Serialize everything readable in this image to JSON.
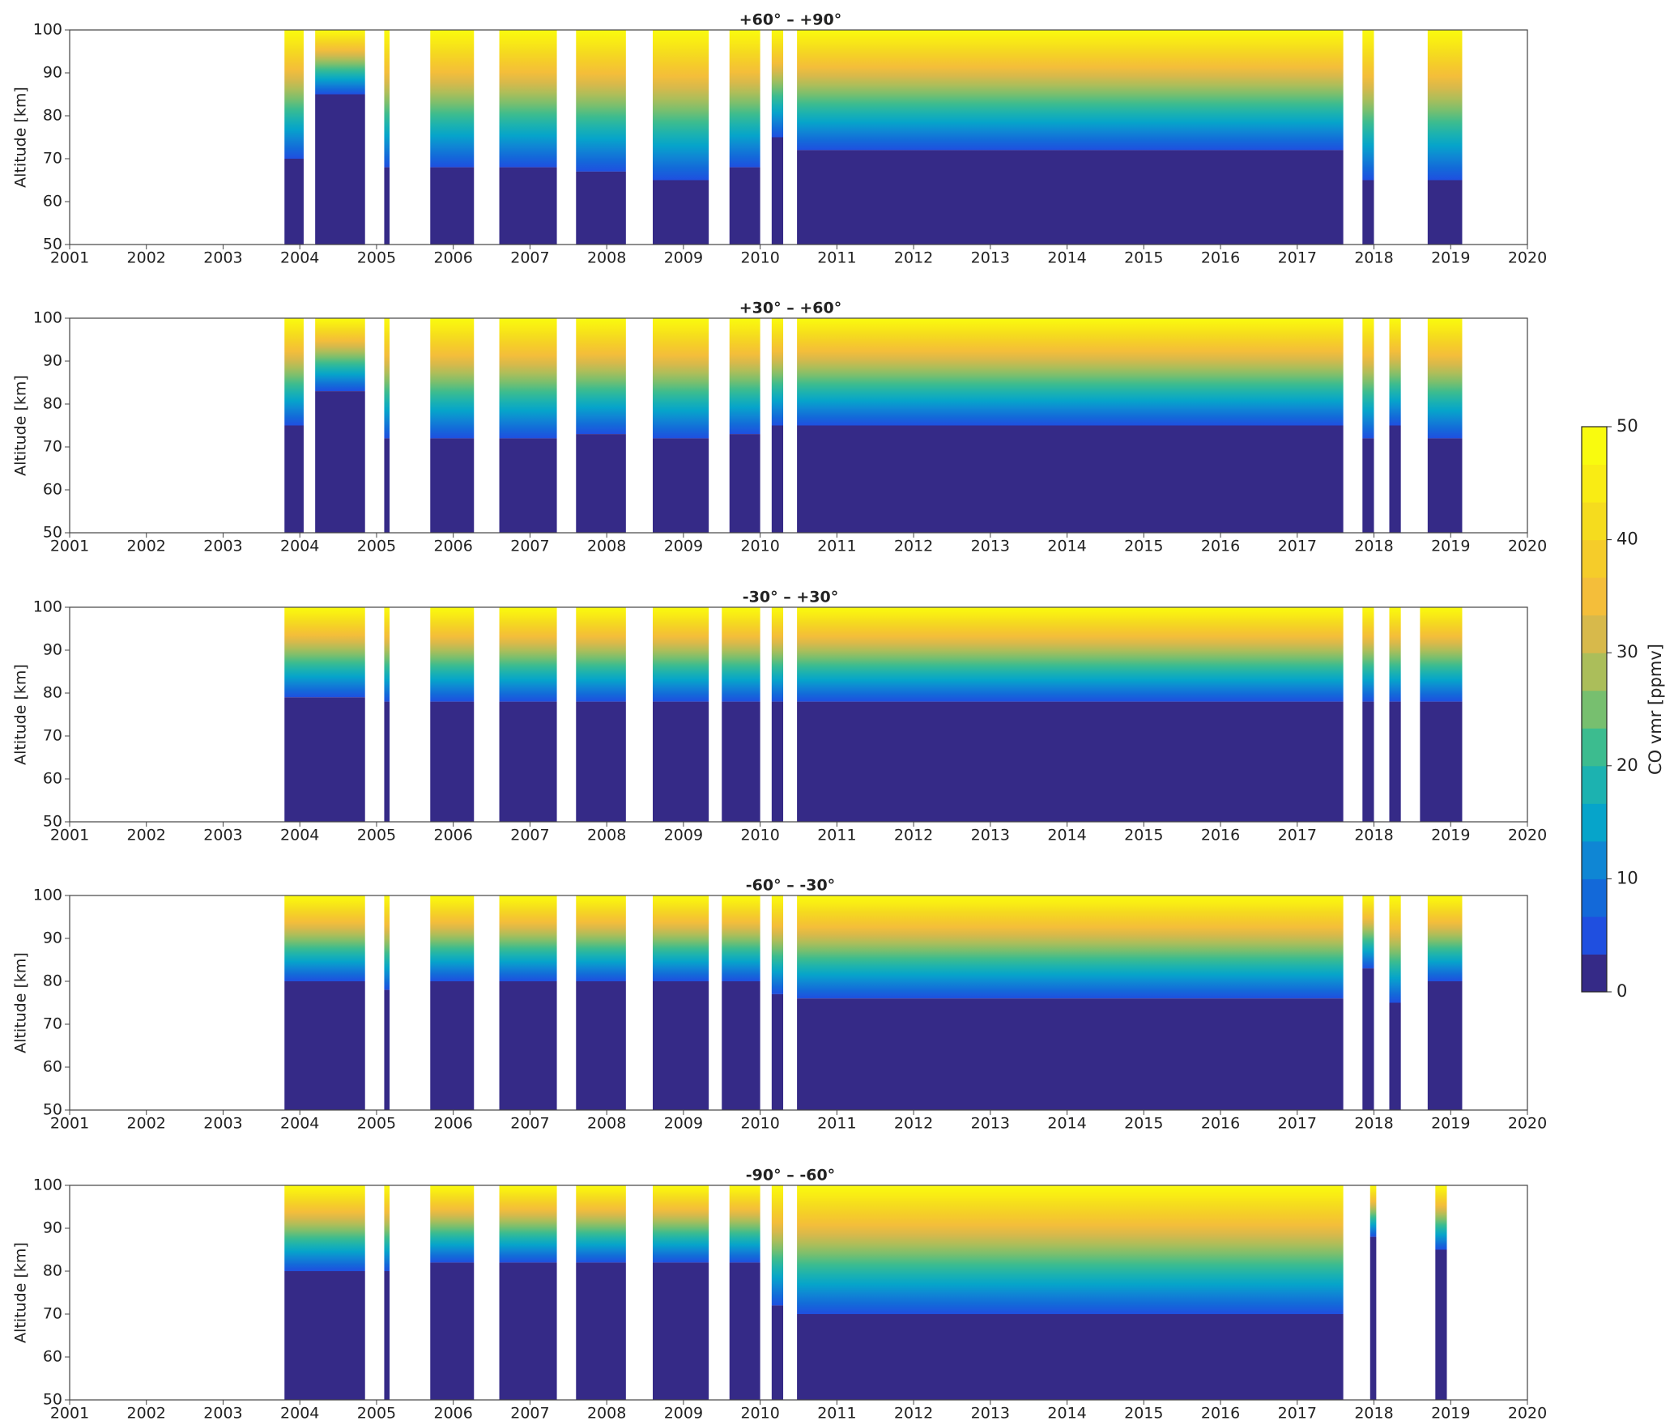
{
  "chart_data": [
    {
      "type": "contour",
      "title": "+60° – +90°",
      "ylabel": "Altitude [km]",
      "x": [
        [
          2003.8,
          2004.05
        ],
        [
          2004.2,
          2004.85
        ],
        [
          2005.1,
          2005.17
        ],
        [
          2005.7,
          2006.27
        ],
        [
          2006.6,
          2007.35
        ],
        [
          2007.6,
          2008.25
        ],
        [
          2008.6,
          2009.33
        ],
        [
          2009.6,
          2010.0
        ],
        [
          2010.15,
          2010.3
        ],
        [
          2010.48,
          2017.6
        ],
        [
          2017.85,
          2018.0
        ],
        [
          2018.7,
          2019.15
        ]
      ],
      "values": [
        70,
        85,
        68,
        68,
        68,
        67,
        65,
        68,
        75,
        72,
        65,
        65
      ],
      "xlim": [
        2001,
        2020
      ],
      "ylim": [
        50,
        100
      ],
      "xticks": [
        2001,
        2002,
        2003,
        2004,
        2005,
        2006,
        2007,
        2008,
        2009,
        2010,
        2011,
        2012,
        2013,
        2014,
        2015,
        2016,
        2017,
        2018,
        2019,
        2020
      ],
      "yticks": [
        50,
        60,
        70,
        80,
        90,
        100
      ]
    },
    {
      "type": "contour",
      "title": "+30° – +60°",
      "ylabel": "Altitude [km]",
      "x": [
        [
          2003.8,
          2004.05
        ],
        [
          2004.2,
          2004.85
        ],
        [
          2005.1,
          2005.17
        ],
        [
          2005.7,
          2006.27
        ],
        [
          2006.6,
          2007.35
        ],
        [
          2007.6,
          2008.25
        ],
        [
          2008.6,
          2009.33
        ],
        [
          2009.6,
          2010.0
        ],
        [
          2010.15,
          2010.3
        ],
        [
          2010.48,
          2017.6
        ],
        [
          2017.85,
          2018.0
        ],
        [
          2018.2,
          2018.35
        ],
        [
          2018.7,
          2019.15
        ]
      ],
      "values": [
        75,
        83,
        72,
        72,
        72,
        73,
        72,
        73,
        75,
        75,
        72,
        75,
        72
      ],
      "xlim": [
        2001,
        2020
      ],
      "ylim": [
        50,
        100
      ],
      "xticks": [
        2001,
        2002,
        2003,
        2004,
        2005,
        2006,
        2007,
        2008,
        2009,
        2010,
        2011,
        2012,
        2013,
        2014,
        2015,
        2016,
        2017,
        2018,
        2019,
        2020
      ],
      "yticks": [
        50,
        60,
        70,
        80,
        90,
        100
      ]
    },
    {
      "type": "contour",
      "title": "-30° – +30°",
      "ylabel": "Altitude [km]",
      "x": [
        [
          2003.8,
          2004.85
        ],
        [
          2005.1,
          2005.17
        ],
        [
          2005.7,
          2006.27
        ],
        [
          2006.6,
          2007.35
        ],
        [
          2007.6,
          2008.25
        ],
        [
          2008.6,
          2009.33
        ],
        [
          2009.5,
          2010.0
        ],
        [
          2010.15,
          2010.3
        ],
        [
          2010.48,
          2017.6
        ],
        [
          2017.85,
          2018.0
        ],
        [
          2018.2,
          2018.35
        ],
        [
          2018.6,
          2019.15
        ]
      ],
      "values": [
        79,
        78,
        78,
        78,
        78,
        78,
        78,
        78,
        78,
        78,
        78,
        78
      ],
      "xlim": [
        2001,
        2020
      ],
      "ylim": [
        50,
        100
      ],
      "xticks": [
        2001,
        2002,
        2003,
        2004,
        2005,
        2006,
        2007,
        2008,
        2009,
        2010,
        2011,
        2012,
        2013,
        2014,
        2015,
        2016,
        2017,
        2018,
        2019,
        2020
      ],
      "yticks": [
        50,
        60,
        70,
        80,
        90,
        100
      ]
    },
    {
      "type": "contour",
      "title": "-60° – -30°",
      "ylabel": "Altitude [km]",
      "x": [
        [
          2003.8,
          2004.85
        ],
        [
          2005.1,
          2005.17
        ],
        [
          2005.7,
          2006.27
        ],
        [
          2006.6,
          2007.35
        ],
        [
          2007.6,
          2008.25
        ],
        [
          2008.6,
          2009.33
        ],
        [
          2009.5,
          2010.0
        ],
        [
          2010.15,
          2010.3
        ],
        [
          2010.48,
          2017.6
        ],
        [
          2017.85,
          2018.0
        ],
        [
          2018.2,
          2018.35
        ],
        [
          2018.7,
          2019.15
        ]
      ],
      "values": [
        80,
        78,
        80,
        80,
        80,
        80,
        80,
        77,
        76,
        83,
        75,
        80
      ],
      "xlim": [
        2001,
        2020
      ],
      "ylim": [
        50,
        100
      ],
      "xticks": [
        2001,
        2002,
        2003,
        2004,
        2005,
        2006,
        2007,
        2008,
        2009,
        2010,
        2011,
        2012,
        2013,
        2014,
        2015,
        2016,
        2017,
        2018,
        2019,
        2020
      ],
      "yticks": [
        50,
        60,
        70,
        80,
        90,
        100
      ]
    },
    {
      "type": "contour",
      "title": "-90° – -60°",
      "ylabel": "Altitude [km]",
      "x": [
        [
          2003.8,
          2004.85
        ],
        [
          2005.1,
          2005.17
        ],
        [
          2005.7,
          2006.27
        ],
        [
          2006.6,
          2007.35
        ],
        [
          2007.6,
          2008.25
        ],
        [
          2008.6,
          2009.33
        ],
        [
          2009.6,
          2010.0
        ],
        [
          2010.15,
          2010.3
        ],
        [
          2010.48,
          2017.6
        ],
        [
          2017.95,
          2018.03
        ],
        [
          2018.8,
          2018.95
        ]
      ],
      "values": [
        80,
        80,
        82,
        82,
        82,
        82,
        82,
        72,
        70,
        88,
        85
      ],
      "xlim": [
        2001,
        2020
      ],
      "ylim": [
        50,
        100
      ],
      "xticks": [
        2001,
        2002,
        2003,
        2004,
        2005,
        2006,
        2007,
        2008,
        2009,
        2010,
        2011,
        2012,
        2013,
        2014,
        2015,
        2016,
        2017,
        2018,
        2019,
        2020
      ],
      "yticks": [
        50,
        60,
        70,
        80,
        90,
        100
      ]
    },
    {
      "type": "colorbar",
      "label": "CO vmr [ppmv]",
      "ylim": [
        0,
        50
      ],
      "yticks": [
        0,
        10,
        20,
        30,
        40,
        50
      ],
      "colors": [
        "#352a87",
        "#1f4fe0",
        "#1369d9",
        "#0f86d4",
        "#06a4ca",
        "#1cb2b0",
        "#3cbc8f",
        "#77bf6f",
        "#abbe5a",
        "#d7b94b",
        "#f4be3a",
        "#f5cc2a",
        "#f5dc1e",
        "#f9ec14",
        "#f9fb0e"
      ]
    }
  ]
}
